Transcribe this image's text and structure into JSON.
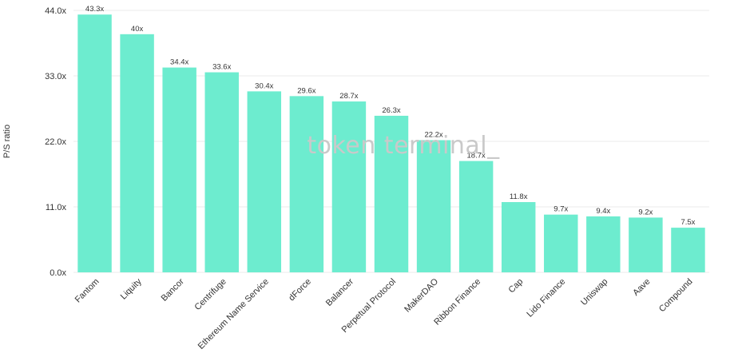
{
  "chart_data": {
    "type": "bar",
    "ylabel": "P/S ratio",
    "ylim": [
      0,
      44
    ],
    "yticks": [
      "0.0x",
      "11.0x",
      "22.0x",
      "33.0x",
      "44.0x"
    ],
    "ytick_values": [
      0,
      11,
      22,
      33,
      44
    ],
    "grid": true,
    "bar_color": "#6deccf",
    "categories": [
      "Fantom",
      "Liquity",
      "Bancor",
      "Centrifuge",
      "Ethereum Name Service",
      "dForce",
      "Balancer",
      "Perpetual Protocol",
      "MakerDAO",
      "Ribbon Finance",
      "Cap",
      "Lido Finance",
      "Uniswap",
      "Aave",
      "Compound"
    ],
    "values": [
      43.3,
      40,
      34.4,
      33.6,
      30.4,
      29.6,
      28.7,
      26.3,
      22.2,
      18.7,
      11.8,
      9.7,
      9.4,
      9.2,
      7.5
    ],
    "data_labels": [
      "43.3x",
      "40x",
      "34.4x",
      "33.6x",
      "30.4x",
      "29.6x",
      "28.7x",
      "26.3x",
      "22.2x",
      "18.7x",
      "11.8x",
      "9.7x",
      "9.4x",
      "9.2x",
      "7.5x"
    ],
    "watermark": "token terminal_"
  }
}
